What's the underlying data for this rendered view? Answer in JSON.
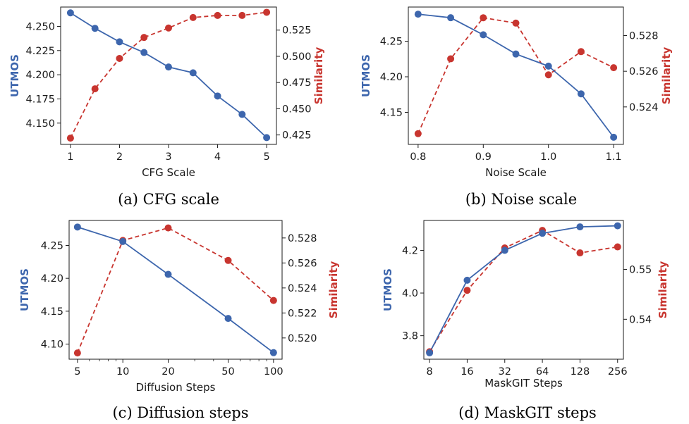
{
  "colors": {
    "left": "#3d66ad",
    "right": "#c8352f",
    "axis": "#1a1a1a"
  },
  "chart_data": [
    {
      "type": "line",
      "caption": "(a) CFG scale",
      "xlabel": "CFG Scale",
      "ylabel_left": "UTMOS",
      "ylabel_right": "Similarity",
      "x_scale": "linear",
      "x": [
        1,
        1.5,
        2,
        2.5,
        3,
        3.5,
        4,
        4.5,
        5
      ],
      "xlim": [
        0.8,
        5.2
      ],
      "xticks": [
        1,
        2,
        3,
        4,
        5
      ],
      "xtick_labels": [
        "1",
        "2",
        "3",
        "4",
        "5"
      ],
      "left_series": {
        "name": "UTMOS",
        "values": [
          4.264,
          4.248,
          4.234,
          4.223,
          4.208,
          4.202,
          4.178,
          4.159,
          4.135
        ]
      },
      "left_ylim": [
        4.128,
        4.27
      ],
      "left_ticks": [
        4.15,
        4.175,
        4.2,
        4.225,
        4.25
      ],
      "left_tick_labels": [
        "4.150",
        "4.175",
        "4.200",
        "4.225",
        "4.250"
      ],
      "right_series": {
        "name": "Similarity",
        "values": [
          0.422,
          0.469,
          0.498,
          0.518,
          0.527,
          0.537,
          0.539,
          0.539,
          0.542
        ]
      },
      "right_ylim": [
        0.416,
        0.547
      ],
      "right_ticks": [
        0.425,
        0.45,
        0.475,
        0.5,
        0.525
      ],
      "right_tick_labels": [
        "0.425",
        "0.450",
        "0.475",
        "0.500",
        "0.525"
      ]
    },
    {
      "type": "line",
      "caption": "(b) Noise scale",
      "xlabel": "Noise Scale",
      "ylabel_left": "UTMOS",
      "ylabel_right": "Similarity",
      "x_scale": "linear",
      "x": [
        0.8,
        0.85,
        0.9,
        0.95,
        1.0,
        1.05,
        1.1
      ],
      "xlim": [
        0.785,
        1.115
      ],
      "xticks": [
        0.8,
        0.9,
        1.0,
        1.1
      ],
      "xtick_labels": [
        "0.8",
        "0.9",
        "1.0",
        "1.1"
      ],
      "left_series": {
        "name": "UTMOS",
        "values": [
          4.288,
          4.283,
          4.259,
          4.232,
          4.215,
          4.176,
          4.115
        ]
      },
      "left_ylim": [
        4.105,
        4.298
      ],
      "left_ticks": [
        4.15,
        4.2,
        4.25
      ],
      "left_tick_labels": [
        "4.15",
        "4.20",
        "4.25"
      ],
      "right_series": {
        "name": "Similarity",
        "values": [
          0.5225,
          0.5267,
          0.529,
          0.5287,
          0.5258,
          0.5271,
          0.5262
        ]
      },
      "right_ylim": [
        0.5219,
        0.5296
      ],
      "right_ticks": [
        0.524,
        0.526,
        0.528
      ],
      "right_tick_labels": [
        "0.524",
        "0.526",
        "0.528"
      ]
    },
    {
      "type": "line",
      "caption": "(c) Diffusion steps",
      "xlabel": "Diffusion Steps",
      "ylabel_left": "UTMOS",
      "ylabel_right": "Similarity",
      "x_scale": "log",
      "x": [
        5,
        10,
        20,
        50,
        100
      ],
      "xlim": [
        4.4,
        114
      ],
      "xticks": [
        5,
        10,
        20,
        50,
        100
      ],
      "xtick_labels": [
        "5",
        "10",
        "20",
        "50",
        "100"
      ],
      "left_series": {
        "name": "UTMOS",
        "values": [
          4.278,
          4.256,
          4.206,
          4.139,
          4.087
        ]
      },
      "left_ylim": [
        4.077,
        4.288
      ],
      "left_ticks": [
        4.1,
        4.15,
        4.2,
        4.25
      ],
      "left_tick_labels": [
        "4.10",
        "4.15",
        "4.20",
        "4.25"
      ],
      "right_series": {
        "name": "Similarity",
        "values": [
          0.5188,
          0.5278,
          0.5288,
          0.5262,
          0.523
        ]
      },
      "right_ylim": [
        0.5183,
        0.5294
      ],
      "right_ticks": [
        0.52,
        0.522,
        0.524,
        0.526,
        0.528
      ],
      "right_tick_labels": [
        "0.520",
        "0.522",
        "0.524",
        "0.526",
        "0.528"
      ]
    },
    {
      "type": "line",
      "caption": "(d) MaskGIT steps",
      "xlabel": "MaskGIT Steps",
      "ylabel_left": "UTMOS",
      "ylabel_right": "Similarity",
      "x_scale": "log2",
      "x": [
        8,
        16,
        32,
        64,
        128,
        256
      ],
      "xlim": [
        7.2,
        285
      ],
      "xticks": [
        8,
        16,
        32,
        64,
        128,
        256
      ],
      "xtick_labels": [
        "8",
        "16",
        "32",
        "64",
        "128",
        "256"
      ],
      "left_series": {
        "name": "UTMOS",
        "values": [
          3.72,
          4.06,
          4.2,
          4.28,
          4.31,
          4.315
        ]
      },
      "left_ylim": [
        3.69,
        4.34
      ],
      "left_ticks": [
        3.8,
        4.0,
        4.2
      ],
      "left_tick_labels": [
        "3.8",
        "4.0",
        "4.2"
      ],
      "right_series": {
        "name": "Similarity",
        "values": [
          0.5335,
          0.5458,
          0.5543,
          0.5578,
          0.5533,
          0.5545
        ]
      },
      "right_ylim": [
        0.532,
        0.5598
      ],
      "right_ticks": [
        0.54,
        0.55
      ],
      "right_tick_labels": [
        "0.54",
        "0.55"
      ]
    }
  ]
}
